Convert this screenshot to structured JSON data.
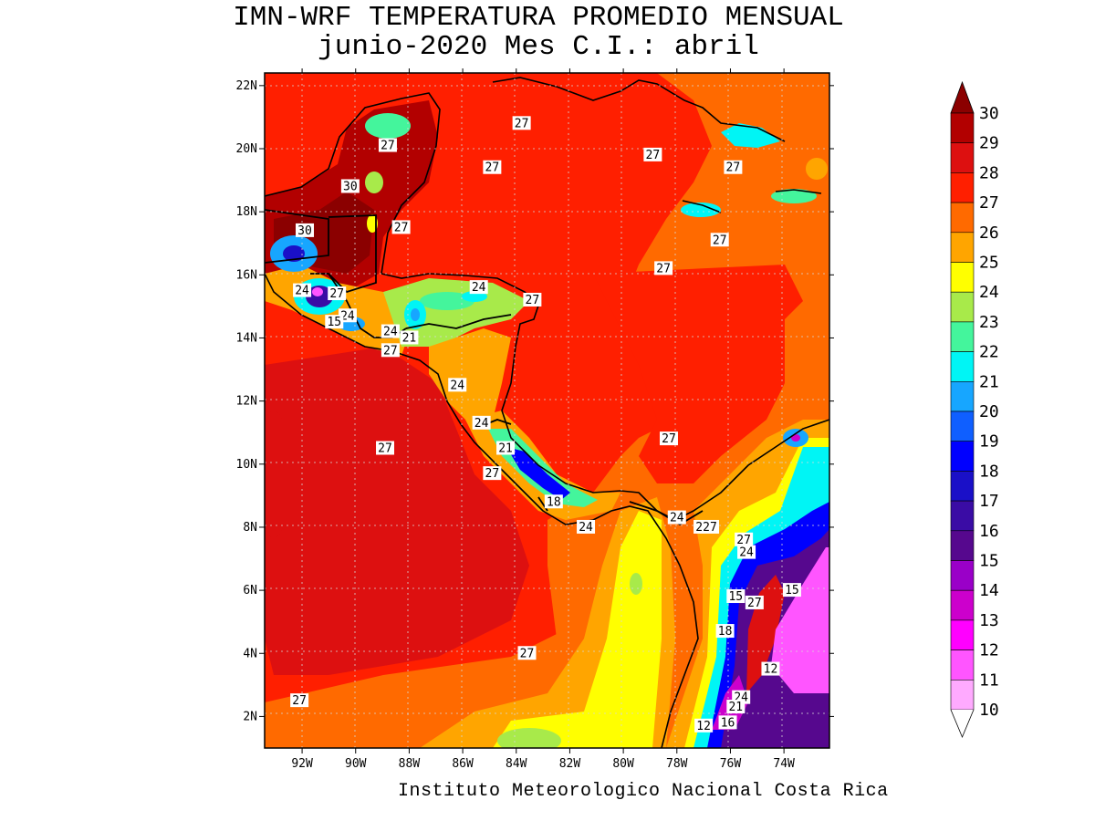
{
  "title": {
    "line1": "IMN-WRF  TEMPERATURA PROMEDIO MENSUAL",
    "line2": "junio-2020 Mes C.I.: abril"
  },
  "footer": "Instituto Meteorologico Nacional Costa Rica",
  "map": {
    "lat_ticks": [
      "22N",
      "20N",
      "18N",
      "16N",
      "14N",
      "12N",
      "10N",
      "8N",
      "6N",
      "4N",
      "2N"
    ],
    "lon_ticks": [
      "92W",
      "90W",
      "88W",
      "86W",
      "84W",
      "82W",
      "80W",
      "78W",
      "76W",
      "74W"
    ],
    "contour_labels": [
      {
        "text": "27",
        "lon": -88.8,
        "lat": 20.1
      },
      {
        "text": "27",
        "lon": -83.8,
        "lat": 20.8
      },
      {
        "text": "27",
        "lon": -78.9,
        "lat": 19.8
      },
      {
        "text": "27",
        "lon": -84.9,
        "lat": 19.4
      },
      {
        "text": "27",
        "lon": -75.9,
        "lat": 19.4
      },
      {
        "text": "30",
        "lon": -90.2,
        "lat": 18.8
      },
      {
        "text": "27",
        "lon": -88.3,
        "lat": 17.5
      },
      {
        "text": "30",
        "lon": -91.9,
        "lat": 17.4
      },
      {
        "text": "27",
        "lon": -76.4,
        "lat": 17.1
      },
      {
        "text": "27",
        "lon": -78.5,
        "lat": 16.2
      },
      {
        "text": "24",
        "lon": -92.0,
        "lat": 15.5
      },
      {
        "text": "27",
        "lon": -90.7,
        "lat": 15.4
      },
      {
        "text": "24",
        "lon": -85.4,
        "lat": 15.6
      },
      {
        "text": "27",
        "lon": -83.4,
        "lat": 15.2
      },
      {
        "text": "24",
        "lon": -90.3,
        "lat": 14.7
      },
      {
        "text": "15",
        "lon": -90.8,
        "lat": 14.5
      },
      {
        "text": "24",
        "lon": -88.7,
        "lat": 14.2
      },
      {
        "text": "21",
        "lon": -88.0,
        "lat": 14.0
      },
      {
        "text": "27",
        "lon": -88.7,
        "lat": 13.6
      },
      {
        "text": "24",
        "lon": -86.2,
        "lat": 12.5
      },
      {
        "text": "24",
        "lon": -85.3,
        "lat": 11.3
      },
      {
        "text": "27",
        "lon": -78.3,
        "lat": 10.8
      },
      {
        "text": "27",
        "lon": -88.9,
        "lat": 10.5
      },
      {
        "text": "21",
        "lon": -84.4,
        "lat": 10.5
      },
      {
        "text": "27",
        "lon": -84.9,
        "lat": 9.7
      },
      {
        "text": "18",
        "lon": -82.6,
        "lat": 8.8
      },
      {
        "text": "24",
        "lon": -78.0,
        "lat": 8.3
      },
      {
        "text": "24",
        "lon": -81.4,
        "lat": 8.0
      },
      {
        "text": "227",
        "lon": -76.9,
        "lat": 8.0
      },
      {
        "text": "27",
        "lon": -75.5,
        "lat": 7.6
      },
      {
        "text": "24",
        "lon": -75.4,
        "lat": 7.2
      },
      {
        "text": "15",
        "lon": -73.7,
        "lat": 6.0
      },
      {
        "text": "15",
        "lon": -75.8,
        "lat": 5.8
      },
      {
        "text": "27",
        "lon": -75.1,
        "lat": 5.6
      },
      {
        "text": "18",
        "lon": -76.2,
        "lat": 4.7
      },
      {
        "text": "27",
        "lon": -83.6,
        "lat": 4.0
      },
      {
        "text": "12",
        "lon": -74.5,
        "lat": 3.5
      },
      {
        "text": "24",
        "lon": -75.6,
        "lat": 2.6
      },
      {
        "text": "27",
        "lon": -92.1,
        "lat": 2.5
      },
      {
        "text": "21",
        "lon": -75.8,
        "lat": 2.3
      },
      {
        "text": "16",
        "lon": -76.1,
        "lat": 1.8
      },
      {
        "text": "12",
        "lon": -77.0,
        "lat": 1.7
      }
    ]
  },
  "colorbar": {
    "levels": [
      {
        "label": "30",
        "color": "#8b0000"
      },
      {
        "label": "29",
        "color": "#b20000"
      },
      {
        "label": "28",
        "color": "#dd1010"
      },
      {
        "label": "27",
        "color": "#ff1f00"
      },
      {
        "label": "26",
        "color": "#ff6a00"
      },
      {
        "label": "25",
        "color": "#ffa500"
      },
      {
        "label": "24",
        "color": "#ffff00"
      },
      {
        "label": "23",
        "color": "#a8ea4a"
      },
      {
        "label": "22",
        "color": "#44f59c"
      },
      {
        "label": "21",
        "color": "#00f5f5"
      },
      {
        "label": "20",
        "color": "#17a6ff"
      },
      {
        "label": "19",
        "color": "#0f5fff"
      },
      {
        "label": "18",
        "color": "#0000ff"
      },
      {
        "label": "17",
        "color": "#1a10c8"
      },
      {
        "label": "16",
        "color": "#3a0ca5"
      },
      {
        "label": "15",
        "color": "#56088e"
      },
      {
        "label": "14",
        "color": "#9a00c8"
      },
      {
        "label": "13",
        "color": "#cc00cc"
      },
      {
        "label": "12",
        "color": "#ff00ff"
      },
      {
        "label": "11",
        "color": "#ff55ff"
      },
      {
        "label": "10",
        "color": "#ffaaff"
      }
    ]
  }
}
